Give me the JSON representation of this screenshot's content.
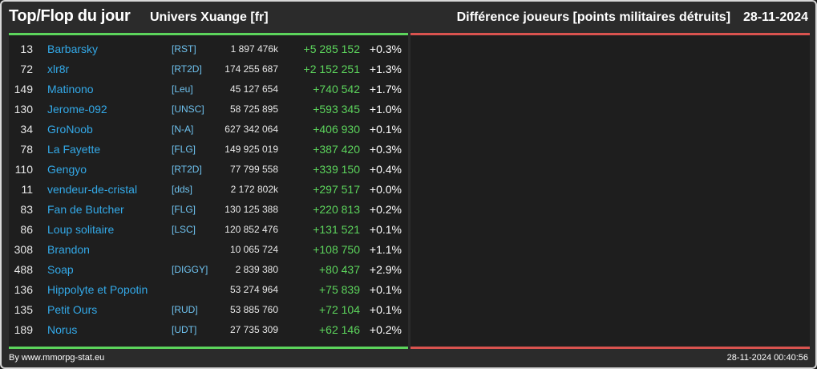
{
  "header": {
    "title": "Top/Flop du jour",
    "universe": "Univers Xuange [fr]",
    "metric": "Différence joueurs [points militaires détruits]",
    "date": "28-11-2024"
  },
  "colors": {
    "accent_green": "#5cd45c",
    "accent_red": "#d9534f",
    "name_blue": "#33a9e8",
    "alliance_blue": "#6fc3f0"
  },
  "top": [
    {
      "rank": "13",
      "name": "Barbarsky",
      "alliance": "[RST]",
      "points": "1 897 476k",
      "diff": "+5 285 152",
      "pct": "+0.3%"
    },
    {
      "rank": "72",
      "name": "xlr8r",
      "alliance": "[RT2D]",
      "points": "174 255 687",
      "diff": "+2 152 251",
      "pct": "+1.3%"
    },
    {
      "rank": "149",
      "name": "Matinono",
      "alliance": "[Leu]",
      "points": "45 127 654",
      "diff": "+740 542",
      "pct": "+1.7%"
    },
    {
      "rank": "130",
      "name": "Jerome-092",
      "alliance": "[UNSC]",
      "points": "58 725 895",
      "diff": "+593 345",
      "pct": "+1.0%"
    },
    {
      "rank": "34",
      "name": "GroNoob",
      "alliance": "[N-A]",
      "points": "627 342 064",
      "diff": "+406 930",
      "pct": "+0.1%"
    },
    {
      "rank": "78",
      "name": "La Fayette",
      "alliance": "[FLG]",
      "points": "149 925 019",
      "diff": "+387 420",
      "pct": "+0.3%"
    },
    {
      "rank": "110",
      "name": "Gengyo",
      "alliance": "[RT2D]",
      "points": "77 799 558",
      "diff": "+339 150",
      "pct": "+0.4%"
    },
    {
      "rank": "11",
      "name": "vendeur-de-cristal",
      "alliance": "[dds]",
      "points": "2 172 802k",
      "diff": "+297 517",
      "pct": "+0.0%"
    },
    {
      "rank": "83",
      "name": "Fan de Butcher",
      "alliance": "[FLG]",
      "points": "130 125 388",
      "diff": "+220 813",
      "pct": "+0.2%"
    },
    {
      "rank": "86",
      "name": "Loup solitaire",
      "alliance": "[LSC]",
      "points": "120 852 476",
      "diff": "+131 521",
      "pct": "+0.1%"
    },
    {
      "rank": "308",
      "name": "Brandon",
      "alliance": "",
      "points": "10 065 724",
      "diff": "+108 750",
      "pct": "+1.1%"
    },
    {
      "rank": "488",
      "name": "Soap",
      "alliance": "[DIGGY]",
      "points": "2 839 380",
      "diff": "+80 437",
      "pct": "+2.9%"
    },
    {
      "rank": "136",
      "name": "Hippolyte et Popotin",
      "alliance": "",
      "points": "53 274 964",
      "diff": "+75 839",
      "pct": "+0.1%"
    },
    {
      "rank": "135",
      "name": "Petit Ours",
      "alliance": "[RUD]",
      "points": "53 885 760",
      "diff": "+72 104",
      "pct": "+0.1%"
    },
    {
      "rank": "189",
      "name": "Norus",
      "alliance": "[UDT]",
      "points": "27 735 309",
      "diff": "+62 146",
      "pct": "+0.2%"
    }
  ],
  "footer": {
    "credit": "By www.mmorpg-stat.eu",
    "timestamp": "28-11-2024 00:40:56"
  }
}
